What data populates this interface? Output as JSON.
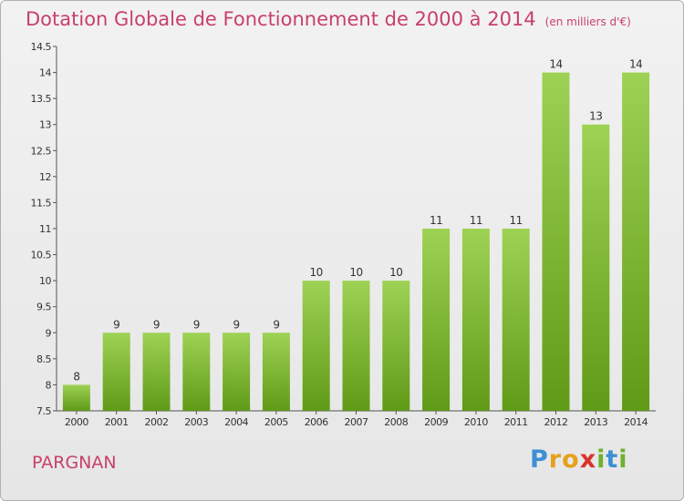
{
  "header": {
    "title": "Dotation Globale de Fonctionnement de 2000 à 2014",
    "subtitle": "(en milliers d'€)"
  },
  "footer": {
    "town": "PARGNAN",
    "logo": "Proxiti"
  },
  "colors": {
    "title": "#c8406a",
    "bar_top": "#9ed255",
    "bar_bottom": "#5f9a17",
    "axis": "#555555"
  },
  "chart_data": {
    "type": "bar",
    "title": "Dotation Globale de Fonctionnement de 2000 à 2014",
    "xlabel": "",
    "ylabel": "",
    "categories": [
      "2000",
      "2001",
      "2002",
      "2003",
      "2004",
      "2005",
      "2006",
      "2007",
      "2008",
      "2009",
      "2010",
      "2011",
      "2012",
      "2013",
      "2014"
    ],
    "values": [
      8,
      9,
      9,
      9,
      9,
      9,
      10,
      10,
      10,
      11,
      11,
      11,
      14,
      13,
      14
    ],
    "labels": [
      "8",
      "9",
      "9",
      "9",
      "9",
      "9",
      "10",
      "10",
      "10",
      "11",
      "11",
      "11",
      "14",
      "13",
      "14"
    ],
    "ylim": [
      7.5,
      14.5
    ],
    "yticks": [
      "7.5",
      "8",
      "8.5",
      "9",
      "9.5",
      "10",
      "10.5",
      "11",
      "11.5",
      "12",
      "12.5",
      "13",
      "13.5",
      "14",
      "14.5"
    ],
    "grid": false
  }
}
